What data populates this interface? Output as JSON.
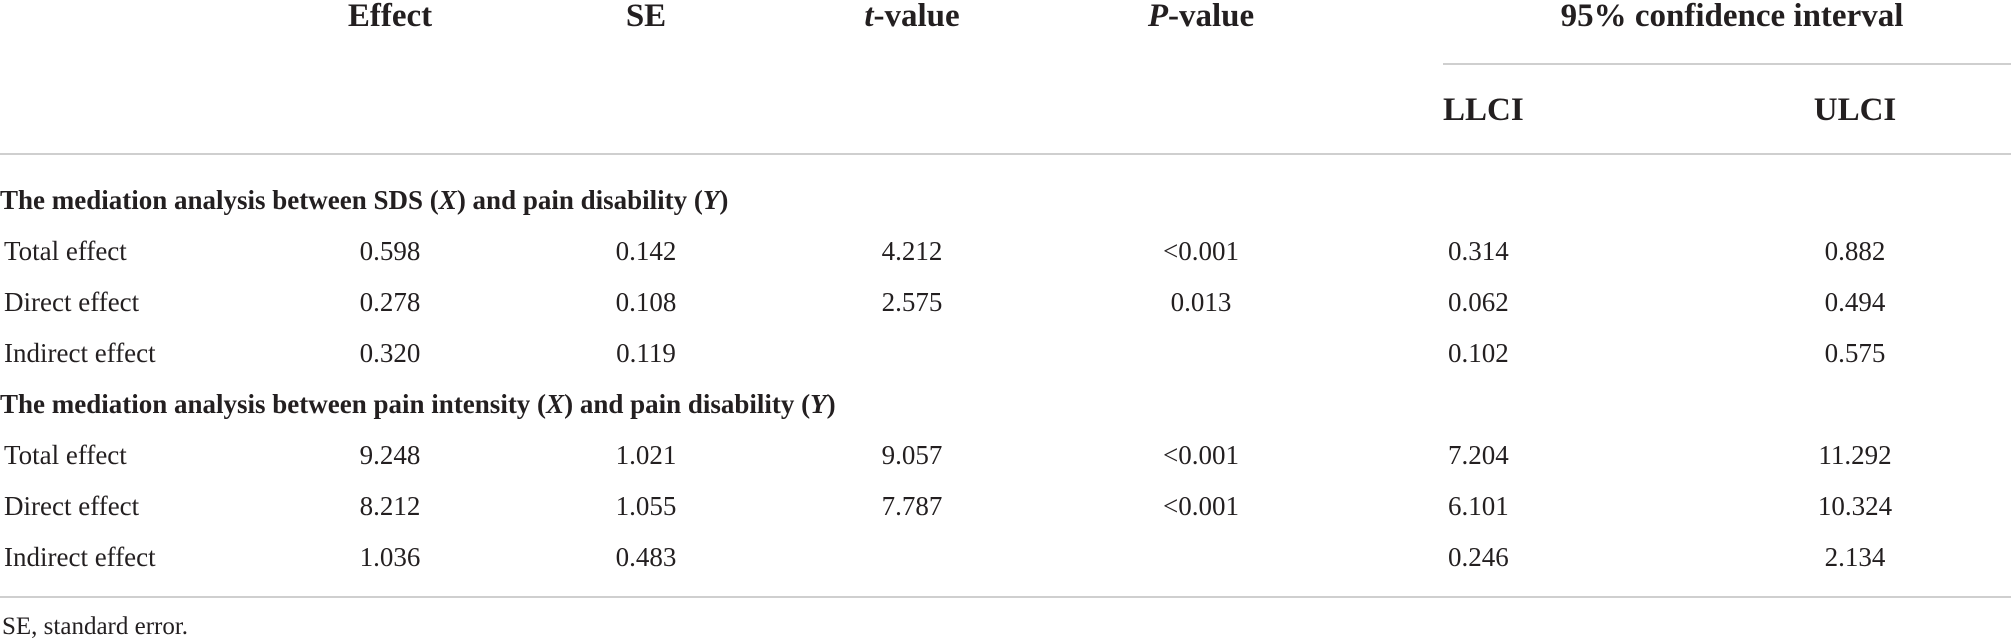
{
  "header": {
    "effect": "Effect",
    "se": "SE",
    "t_value_italic": "t",
    "t_value_rest": "-value",
    "p_value_italic": "P",
    "p_value_rest": "-value",
    "ci": "95% confidence interval",
    "llci": "LLCI",
    "ulci": "ULCI"
  },
  "sections": [
    {
      "title_parts": [
        "The mediation analysis between SDS (",
        "X",
        ") and pain disability (",
        "Y",
        ")"
      ],
      "rows": [
        {
          "label": "Total effect",
          "effect": "0.598",
          "se": "0.142",
          "t": "4.212",
          "p": "<0.001",
          "llci": "0.314",
          "ulci": "0.882"
        },
        {
          "label": "Direct effect",
          "effect": "0.278",
          "se": "0.108",
          "t": "2.575",
          "p": "0.013",
          "llci": "0.062",
          "ulci": "0.494"
        },
        {
          "label": "Indirect effect",
          "effect": "0.320",
          "se": "0.119",
          "t": "",
          "p": "",
          "llci": "0.102",
          "ulci": "0.575"
        }
      ]
    },
    {
      "title_parts": [
        "The mediation analysis between pain intensity (",
        "X",
        ") and pain disability (",
        "Y",
        ")"
      ],
      "rows": [
        {
          "label": "Total effect",
          "effect": "9.248",
          "se": "1.021",
          "t": "9.057",
          "p": "<0.001",
          "llci": "7.204",
          "ulci": "11.292"
        },
        {
          "label": "Direct effect",
          "effect": "8.212",
          "se": "1.055",
          "t": "7.787",
          "p": "<0.001",
          "llci": "6.101",
          "ulci": "10.324"
        },
        {
          "label": "Indirect effect",
          "effect": "1.036",
          "se": "0.483",
          "t": "",
          "p": "",
          "llci": "0.246",
          "ulci": "2.134"
        }
      ]
    }
  ],
  "footnote": "SE, standard error."
}
